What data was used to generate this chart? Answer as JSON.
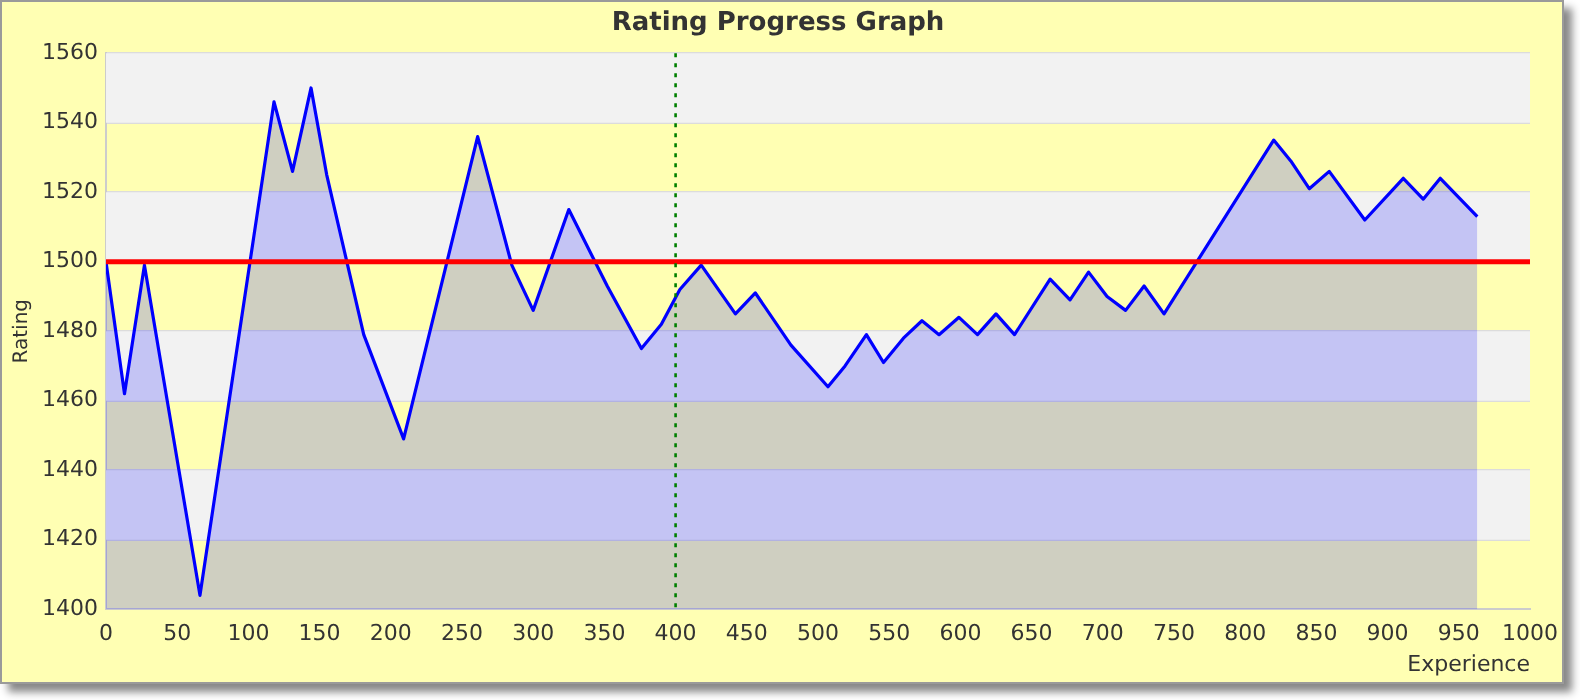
{
  "chart_data": {
    "type": "area",
    "title": "Rating Progress Graph",
    "xlabel": "Experience",
    "ylabel": "Rating",
    "x": [
      0,
      13,
      27,
      66,
      118,
      131,
      144,
      155,
      181,
      209,
      261,
      285,
      300,
      325,
      352,
      376,
      390,
      403,
      418,
      442,
      456,
      481,
      507,
      519,
      534,
      546,
      560,
      573,
      585,
      599,
      612,
      625,
      638,
      663,
      677,
      690,
      703,
      716,
      729,
      743,
      820,
      832,
      845,
      859,
      884,
      911,
      925,
      937,
      963
    ],
    "series": [
      {
        "color": "#0000ff",
        "values": [
          1500,
          1462,
          1499,
          1404,
          1546,
          1526,
          1550,
          1525,
          1479,
          1449,
          1536,
          1499,
          1486,
          1515,
          1493,
          1475,
          1482,
          1492,
          1499,
          1485,
          1491,
          1476,
          1464,
          1470,
          1479,
          1471,
          1478,
          1483,
          1479,
          1484,
          1479,
          1485,
          1479,
          1495,
          1489,
          1497,
          1490,
          1486,
          1493,
          1485,
          1535,
          1529,
          1521,
          1526,
          1512,
          1524,
          1518,
          1524,
          1513
        ]
      }
    ],
    "xlim": [
      0,
      1000
    ],
    "xticks": [
      0,
      50,
      100,
      150,
      200,
      250,
      300,
      350,
      400,
      450,
      500,
      550,
      600,
      650,
      700,
      750,
      800,
      850,
      900,
      950,
      1000
    ],
    "ylim": [
      1400,
      1560
    ],
    "yticks": [
      1400,
      1420,
      1440,
      1460,
      1480,
      1500,
      1520,
      1540,
      1560
    ],
    "ref_lines": [
      {
        "axis": "y",
        "value": 1500,
        "color": "#ff0000",
        "line_style": "solid"
      },
      {
        "axis": "x",
        "value": 400,
        "color": "#008000",
        "line_style": "dotted"
      }
    ],
    "grid": "y",
    "legend": false,
    "marker": "none",
    "line_style": "solid"
  }
}
